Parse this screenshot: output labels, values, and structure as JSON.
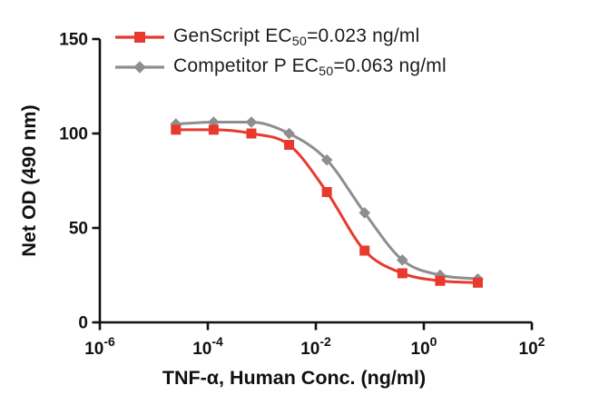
{
  "figure": {
    "background": "#ffffff",
    "text_color": "#111111"
  },
  "chart_data": {
    "type": "line",
    "title": "",
    "xlabel": "TNF-α, Human Conc. (ng/ml)",
    "ylabel": "Net OD (490 nm)",
    "x_scale": "log10",
    "xlim": [
      1e-06,
      100
    ],
    "ylim": [
      0,
      150
    ],
    "grid": false,
    "legend_position": "top-left-inside",
    "y_ticks": [
      0,
      50,
      100,
      150
    ],
    "x_ticks": [
      {
        "base": "10",
        "exp": "-6"
      },
      {
        "base": "10",
        "exp": "-4"
      },
      {
        "base": "10",
        "exp": "-2"
      },
      {
        "base": "10",
        "exp": "0"
      },
      {
        "base": "10",
        "exp": "2"
      }
    ],
    "x": [
      2.56e-05,
      0.000128,
      0.00064,
      0.0032,
      0.016,
      0.08,
      0.4,
      2,
      10
    ],
    "series": [
      {
        "name": "Competitor P",
        "marker": "diamond",
        "color": "#8E8E8E",
        "ec50_ng_ml": 0.063,
        "values": [
          105,
          106,
          106,
          100,
          86,
          58,
          33,
          25,
          23
        ],
        "legend": {
          "prefix": "Competitor P EC",
          "sub": "50",
          "suffix": "=0.063 ng/ml"
        }
      },
      {
        "name": "GenScript",
        "marker": "square",
        "color": "#E8392E",
        "ec50_ng_ml": 0.023,
        "values": [
          102,
          102,
          100,
          94,
          69,
          38,
          26,
          22,
          21
        ],
        "legend": {
          "prefix": "GenScript EC",
          "sub": "50",
          "suffix": "=0.023 ng/ml"
        }
      }
    ]
  },
  "legend": {
    "order": [
      "GenScript",
      "Competitor P"
    ]
  }
}
